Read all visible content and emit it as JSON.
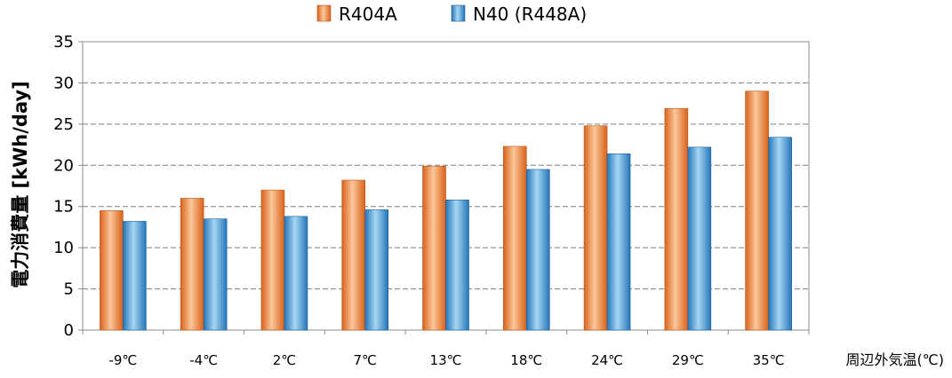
{
  "chart_data": {
    "type": "bar",
    "categories": [
      "-9℃",
      "-4℃",
      "2℃",
      "7℃",
      "13℃",
      "18℃",
      "24℃",
      "29℃",
      "35℃"
    ],
    "series": [
      {
        "name": "R404A",
        "values": [
          14.5,
          16.0,
          17.0,
          18.2,
          19.9,
          22.3,
          24.8,
          26.9,
          29.0
        ],
        "color": "#E8792A"
      },
      {
        "name": "N40 (R448A)",
        "values": [
          13.2,
          13.5,
          13.8,
          14.6,
          15.8,
          19.5,
          21.4,
          22.2,
          23.4
        ],
        "color": "#3A8FCF"
      }
    ],
    "xlabel": "周辺外気温(℃)",
    "ylabel": "電力消費量 [kWh/day]",
    "ylim": [
      0,
      35
    ],
    "yticks": [
      0,
      5,
      10,
      15,
      20,
      25,
      30,
      35
    ],
    "grid": true,
    "legend": "top-center"
  }
}
